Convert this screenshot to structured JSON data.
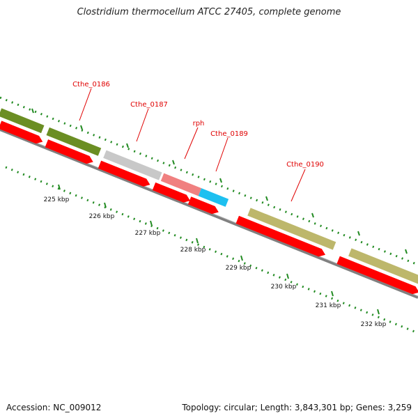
{
  "title": "Clostridium thermocellum ATCC 27405, complete genome",
  "accession": "Accession: NC_009012",
  "summary": "Topology: circular; Length: 3,843,301 bp; Genes: 3,259",
  "colors": {
    "olive": "#6b8e23",
    "grey": "#c8c8c8",
    "pink": "#f08080",
    "cyan": "#1ec0f0",
    "khaki": "#bdb76b",
    "red": "#ff0000",
    "backbone": "#808080",
    "ticks": "#228b22",
    "label": "#e00000"
  },
  "gene_labels": [
    "Cthe_0186",
    "Cthe_0187",
    "rph",
    "Cthe_0189",
    "Cthe_0190"
  ],
  "scale_labels": [
    "225 kbp",
    "226 kbp",
    "227 kbp",
    "228 kbp",
    "229 kbp",
    "230 kbp",
    "231 kbp",
    "232 kbp"
  ]
}
